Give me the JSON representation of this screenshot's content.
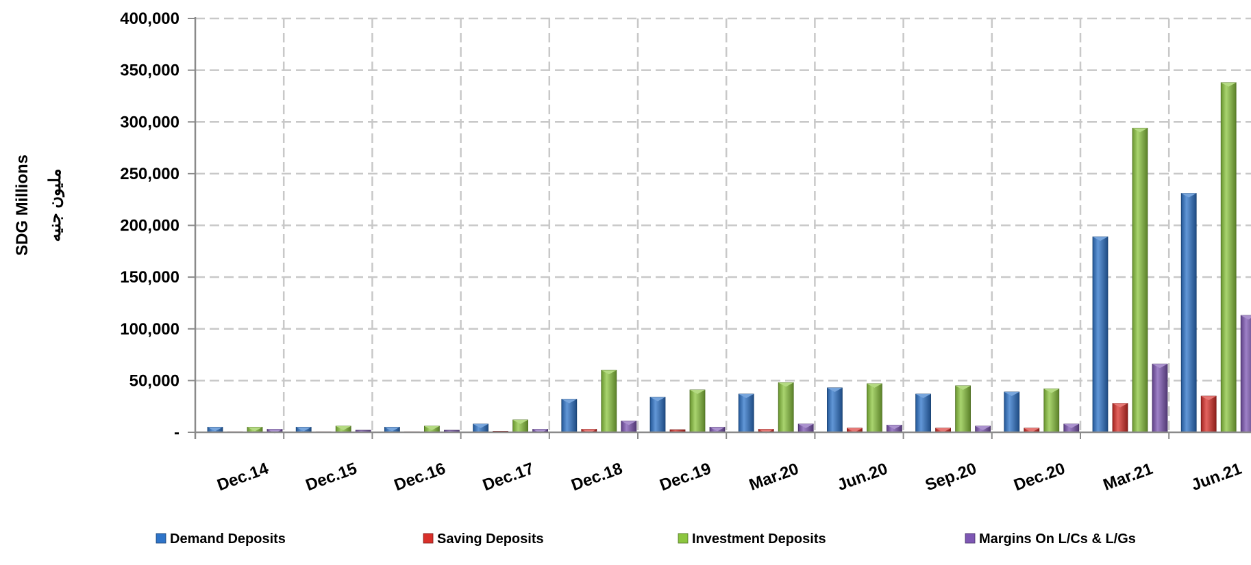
{
  "chart_data": {
    "type": "bar",
    "ylabel_en": "SDG  Millions",
    "ylabel_ar": "مليون جنيه",
    "ylim": [
      0,
      400000
    ],
    "yticks": [
      {
        "value": 0,
        "label": "-"
      },
      {
        "value": 50000,
        "label": "50,000"
      },
      {
        "value": 100000,
        "label": "100,000"
      },
      {
        "value": 150000,
        "label": "150,000"
      },
      {
        "value": 200000,
        "label": "200,000"
      },
      {
        "value": 250000,
        "label": "250,000"
      },
      {
        "value": 300000,
        "label": "300,000"
      },
      {
        "value": 350000,
        "label": "350,000"
      },
      {
        "value": 400000,
        "label": "400,000"
      }
    ],
    "grid": true,
    "legend_position": "bottom",
    "categories": [
      "Dec.14",
      "Dec.15",
      "Dec.16",
      "Dec.17",
      "Dec.18",
      "Dec.19",
      "Mar.20",
      "Jun.20",
      "Sep.20",
      "Dec.20",
      "Mar.21",
      "Jun.21"
    ],
    "series": [
      {
        "name": "Demand Deposits",
        "color": "#2e74c9",
        "values": [
          5000,
          5000,
          5000,
          8000,
          32000,
          34000,
          37000,
          43000,
          37000,
          39000,
          189000,
          231000
        ]
      },
      {
        "name": "Saving Deposits",
        "color": "#d9302a",
        "values": [
          500,
          500,
          500,
          1000,
          3000,
          2500,
          3000,
          4000,
          4000,
          4000,
          28000,
          35000
        ]
      },
      {
        "name": "Investment Deposits",
        "color": "#8cc63f",
        "values": [
          5000,
          6000,
          6000,
          12000,
          60000,
          41000,
          48000,
          47000,
          45000,
          42000,
          294000,
          338000
        ]
      },
      {
        "name": "Margins On L/Cs & L/Gs",
        "color": "#7e57b4",
        "values": [
          3000,
          2000,
          2000,
          3000,
          11000,
          5000,
          8000,
          7000,
          6000,
          8000,
          66000,
          113000
        ]
      }
    ]
  }
}
